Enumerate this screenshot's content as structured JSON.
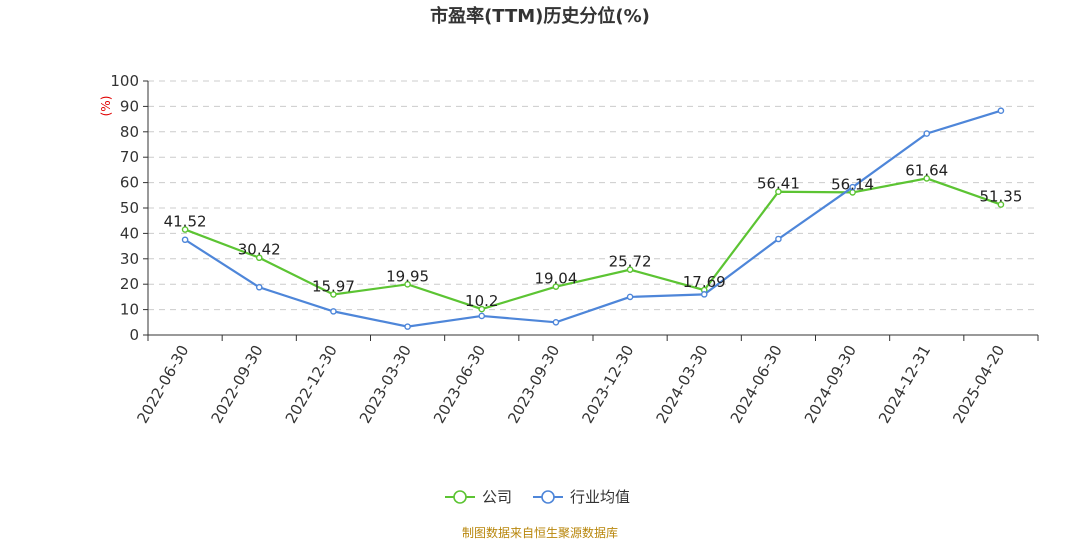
{
  "chart_data": {
    "type": "line",
    "title": "市盈率(TTM)历史分位(%)",
    "ylabel": "(%)",
    "ylim": [
      0,
      100
    ],
    "yticks": [
      0,
      10,
      20,
      30,
      40,
      50,
      60,
      70,
      80,
      90,
      100
    ],
    "grid": true,
    "legend_position": "bottom-center",
    "categories": [
      "2022-06-30",
      "2022-09-30",
      "2022-12-30",
      "2023-03-30",
      "2023-06-30",
      "2023-09-30",
      "2023-12-30",
      "2024-03-30",
      "2024-06-30",
      "2024-09-30",
      "2024-12-31",
      "2025-04-20"
    ],
    "series": [
      {
        "name": "公司",
        "color": "#5cc433",
        "values": [
          41.52,
          30.42,
          15.97,
          19.95,
          10.2,
          19.04,
          25.72,
          17.69,
          56.41,
          56.14,
          61.64,
          51.35
        ],
        "labels": [
          "41.52",
          "30.42",
          "15.97",
          "19.95",
          "10.2",
          "19.04",
          "25.72",
          "17.69",
          "56.41",
          "56.14",
          "61.64",
          "51.35"
        ]
      },
      {
        "name": "行业均值",
        "color": "#4e86d9",
        "values": [
          37.5,
          18.8,
          9.3,
          3.3,
          7.5,
          5.0,
          15.0,
          16.0,
          37.8,
          58.2,
          79.3,
          88.3
        ]
      }
    ]
  },
  "source": "制图数据来自恒生聚源数据库"
}
